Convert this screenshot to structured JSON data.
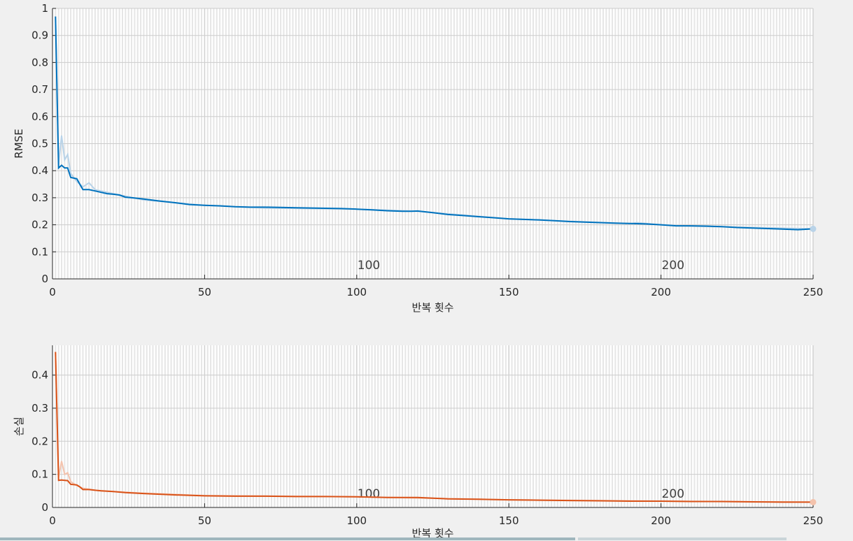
{
  "chart_data": [
    {
      "type": "line",
      "id": "rmse-plot",
      "title": "",
      "xlabel": "반복 횟수",
      "ylabel": "RMSE",
      "xlim": [
        0,
        250
      ],
      "ylim": [
        0,
        1
      ],
      "xticks": [
        "0",
        "50",
        "100",
        "150",
        "200",
        "250"
      ],
      "yticks": [
        "0",
        "0.1",
        "0.2",
        "0.3",
        "0.4",
        "0.5",
        "0.6",
        "0.7",
        "0.8",
        "0.9",
        "1"
      ],
      "epoch_labels": [
        {
          "x": 100,
          "label": "100"
        },
        {
          "x": 200,
          "label": "200"
        }
      ],
      "grid": true,
      "color": "#0072bd",
      "raw_color": "#b9d3e8",
      "series": [
        {
          "role": "smoothed",
          "x": [
            1,
            2,
            3,
            4,
            5,
            6,
            8,
            9,
            10,
            12,
            14,
            16,
            18,
            20,
            22,
            24,
            26,
            28,
            30,
            35,
            40,
            45,
            50,
            55,
            60,
            65,
            70,
            75,
            80,
            85,
            90,
            95,
            100,
            105,
            110,
            115,
            118,
            120,
            125,
            130,
            135,
            140,
            145,
            150,
            155,
            160,
            165,
            170,
            175,
            180,
            185,
            190,
            195,
            200,
            205,
            210,
            215,
            220,
            225,
            230,
            235,
            240,
            245,
            250
          ],
          "y": [
            0.97,
            0.41,
            0.42,
            0.41,
            0.41,
            0.375,
            0.37,
            0.35,
            0.33,
            0.33,
            0.325,
            0.32,
            0.315,
            0.313,
            0.31,
            0.302,
            0.3,
            0.298,
            0.295,
            0.288,
            0.282,
            0.275,
            0.272,
            0.27,
            0.267,
            0.265,
            0.265,
            0.264,
            0.263,
            0.262,
            0.261,
            0.26,
            0.258,
            0.255,
            0.252,
            0.25,
            0.25,
            0.251,
            0.245,
            0.238,
            0.234,
            0.23,
            0.226,
            0.222,
            0.22,
            0.218,
            0.215,
            0.212,
            0.21,
            0.208,
            0.206,
            0.205,
            0.203,
            0.2,
            0.196,
            0.196,
            0.195,
            0.193,
            0.19,
            0.188,
            0.186,
            0.184,
            0.182,
            0.185
          ]
        },
        {
          "role": "raw",
          "x": [
            1,
            2,
            3,
            4,
            5,
            6,
            8,
            10,
            12,
            14,
            20,
            30,
            50,
            70,
            100,
            120,
            150,
            190,
            192,
            200,
            210,
            250
          ],
          "y": [
            0.97,
            0.42,
            0.53,
            0.44,
            0.46,
            0.39,
            0.36,
            0.34,
            0.355,
            0.33,
            0.315,
            0.292,
            0.272,
            0.262,
            0.258,
            0.25,
            0.222,
            0.204,
            0.208,
            0.2,
            0.195,
            0.185
          ]
        }
      ]
    },
    {
      "type": "line",
      "id": "loss-plot",
      "title": "",
      "xlabel": "반복 횟수",
      "ylabel": "손실",
      "xlim": [
        0,
        250
      ],
      "ylim": [
        0,
        0.49
      ],
      "xticks": [
        "0",
        "50",
        "100",
        "150",
        "200",
        "250"
      ],
      "yticks": [
        "0",
        "0.1",
        "0.2",
        "0.3",
        "0.4"
      ],
      "epoch_labels": [
        {
          "x": 100,
          "label": "100"
        },
        {
          "x": 200,
          "label": "200"
        }
      ],
      "grid": true,
      "color": "#d95319",
      "raw_color": "#f4c3ad",
      "series": [
        {
          "role": "smoothed",
          "x": [
            1,
            2,
            3,
            4,
            5,
            6,
            8,
            9,
            10,
            12,
            14,
            16,
            18,
            20,
            24,
            30,
            40,
            50,
            60,
            70,
            80,
            90,
            100,
            110,
            120,
            130,
            140,
            150,
            160,
            170,
            180,
            190,
            200,
            210,
            220,
            230,
            240,
            250
          ],
          "y": [
            0.47,
            0.082,
            0.083,
            0.082,
            0.081,
            0.07,
            0.068,
            0.062,
            0.054,
            0.054,
            0.052,
            0.05,
            0.049,
            0.048,
            0.045,
            0.042,
            0.038,
            0.035,
            0.034,
            0.034,
            0.033,
            0.033,
            0.032,
            0.03,
            0.03,
            0.026,
            0.025,
            0.023,
            0.022,
            0.021,
            0.02,
            0.019,
            0.019,
            0.018,
            0.018,
            0.017,
            0.016,
            0.016
          ]
        },
        {
          "role": "raw",
          "x": [
            1,
            2,
            3,
            4,
            5,
            6,
            8,
            10,
            14,
            20,
            30,
            50,
            100,
            150,
            200,
            250
          ],
          "y": [
            0.47,
            0.09,
            0.14,
            0.1,
            0.105,
            0.078,
            0.066,
            0.058,
            0.052,
            0.048,
            0.043,
            0.036,
            0.032,
            0.023,
            0.019,
            0.016
          ]
        }
      ]
    }
  ]
}
